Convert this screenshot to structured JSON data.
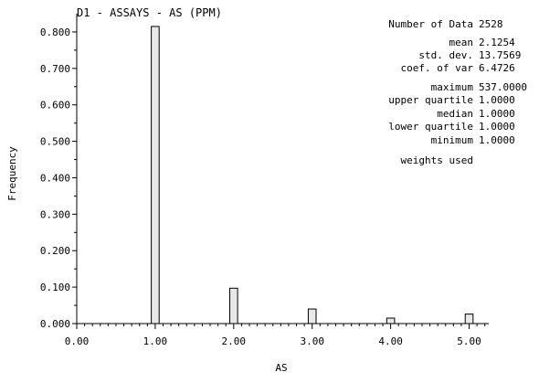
{
  "chart_data": {
    "type": "bar",
    "title": "D1 - ASSAYS - AS (PPM)",
    "xlabel": "AS",
    "ylabel": "Frequency",
    "xlim": [
      0,
      5.25
    ],
    "ylim": [
      0,
      0.85
    ],
    "x_ticks": [
      "0.00",
      "1.00",
      "2.00",
      "3.00",
      "4.00",
      "5.00"
    ],
    "y_ticks": [
      "0.000",
      "0.100",
      "0.200",
      "0.300",
      "0.400",
      "0.500",
      "0.600",
      "0.700",
      "0.800"
    ],
    "grid": false,
    "bars": [
      {
        "x": 1.0,
        "value": 0.815
      },
      {
        "x": 2.0,
        "value": 0.097
      },
      {
        "x": 3.0,
        "value": 0.04
      },
      {
        "x": 4.0,
        "value": 0.015
      },
      {
        "x": 5.0,
        "value": 0.026
      }
    ],
    "bar_width": 0.1,
    "bar_color": "#e8e8e8",
    "stats": [
      {
        "label": "Number of Data",
        "value": "2528"
      },
      {
        "label": "mean",
        "value": "2.1254"
      },
      {
        "label": "std. dev.",
        "value": "13.7569"
      },
      {
        "label": "coef. of var",
        "value": "6.4726"
      },
      {
        "label": "maximum",
        "value": "537.0000"
      },
      {
        "label": "upper quartile",
        "value": "1.0000"
      },
      {
        "label": "median",
        "value": "1.0000"
      },
      {
        "label": "lower quartile",
        "value": "1.0000"
      },
      {
        "label": "minimum",
        "value": "1.0000"
      }
    ],
    "note": "weights used"
  }
}
